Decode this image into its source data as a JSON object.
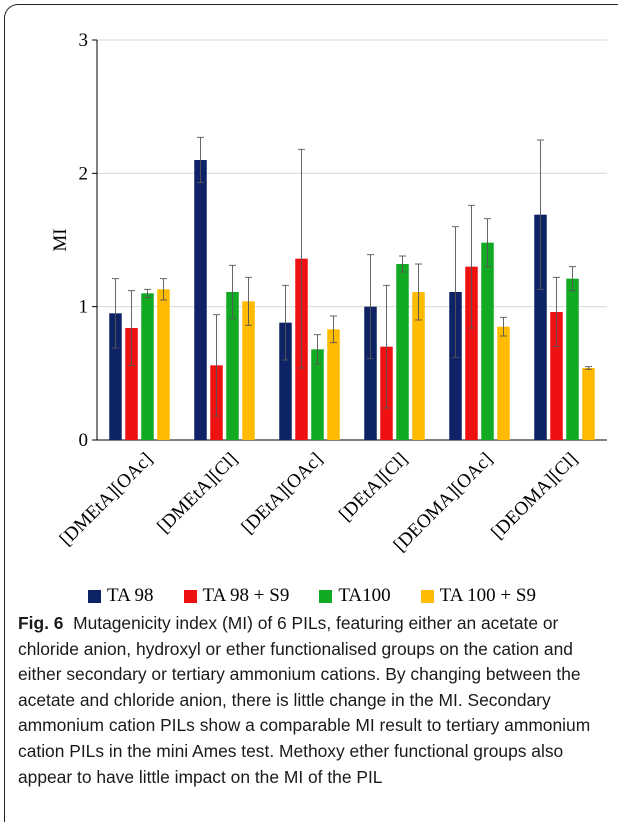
{
  "chart_data": {
    "type": "bar",
    "categories": [
      "[DMEtA][OAc]",
      "[DMEtA][Cl]",
      "[DEtA][OAc]",
      "[DEtA][Cl]",
      "[DEOMA][OAc]",
      "[DEOMA][Cl]"
    ],
    "series": [
      {
        "name": "TA 98",
        "color": "#0d2366",
        "values": [
          0.95,
          2.1,
          0.88,
          1.0,
          1.11,
          1.69
        ],
        "errors": [
          0.26,
          0.17,
          0.28,
          0.39,
          0.49,
          0.56
        ]
      },
      {
        "name": "TA 98 + S9",
        "color": "#ee1111",
        "values": [
          0.84,
          0.56,
          1.36,
          0.7,
          1.3,
          0.96
        ],
        "errors": [
          0.28,
          0.38,
          0.82,
          0.46,
          0.46,
          0.26
        ]
      },
      {
        "name": "TA100",
        "color": "#11aa22",
        "values": [
          1.1,
          1.11,
          0.68,
          1.32,
          1.48,
          1.21
        ],
        "errors": [
          0.03,
          0.2,
          0.11,
          0.06,
          0.18,
          0.09
        ]
      },
      {
        "name": "TA 100 + S9",
        "color": "#ffbb00",
        "values": [
          1.13,
          1.04,
          0.83,
          1.11,
          0.85,
          0.54
        ],
        "errors": [
          0.08,
          0.18,
          0.1,
          0.21,
          0.07,
          0.01
        ]
      }
    ],
    "ylabel": "MI",
    "xlabel": "",
    "ylim": [
      0,
      3
    ],
    "yticks": [
      "0",
      "1",
      "2",
      "3"
    ],
    "grid": true,
    "legend_position": "bottom"
  },
  "caption": {
    "label": "Fig. 6",
    "text": "Mutagenicity index (MI) of 6 PILs, featuring either an acetate or chloride anion, hydroxyl or ether functionalised groups on the cation and either secondary or tertiary ammonium cations. By changing between the acetate and chloride anion, there is little change in the MI. Secondary ammonium cation PILs show a comparable MI result to tertiary ammonium cation PILs in the mini Ames test. Methoxy ether functional groups also appear to have little impact on the MI of the PIL"
  }
}
